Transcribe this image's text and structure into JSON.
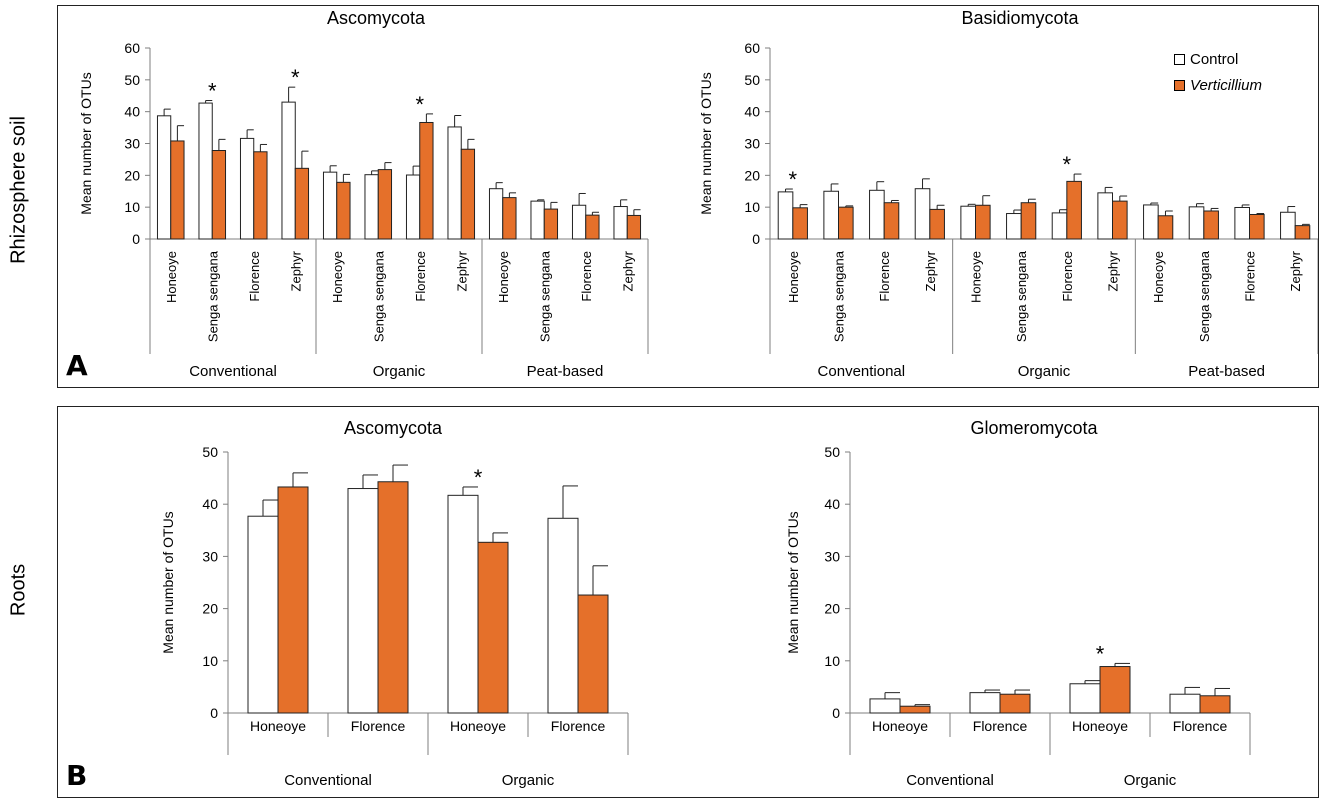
{
  "row_labels": {
    "top": "Rhizosphere soil",
    "bottom": "Roots"
  },
  "panel_letters": {
    "top": "A",
    "bottom": "B"
  },
  "legend": {
    "control": "Control",
    "treatment": "Verticillium"
  },
  "colors": {
    "control": "#ffffff",
    "treatment": "#e5702a",
    "axis": "#7f7f7f",
    "border": "#222222"
  },
  "chart_data": [
    {
      "id": "A1",
      "type": "bar",
      "title": "Ascomycota",
      "ylabel": "Mean number of OTUs",
      "ylim": [
        0,
        60
      ],
      "yticks": [
        0,
        10,
        20,
        30,
        40,
        50,
        60
      ],
      "categories": [
        "Honeoye",
        "Senga sengana",
        "Florence",
        "Zephyr",
        "Honeoye",
        "Senga sengana",
        "Florence",
        "Zephyr",
        "Honeoye",
        "Senga sengana",
        "Florence",
        "Zephyr"
      ],
      "groups": [
        {
          "name": "Conventional",
          "size": 4
        },
        {
          "name": "Organic",
          "size": 4
        },
        {
          "name": "Peat-based",
          "size": 4
        }
      ],
      "series": [
        {
          "name": "Control",
          "values": [
            38.7,
            42.7,
            31.6,
            43.0,
            21.0,
            20.2,
            20.1,
            35.2,
            15.8,
            11.9,
            10.6,
            10.2
          ],
          "errors": [
            2.1,
            0.8,
            2.7,
            4.7,
            2.0,
            1.2,
            2.8,
            3.6,
            1.9,
            0.4,
            3.7,
            2.1
          ]
        },
        {
          "name": "Verticillium",
          "values": [
            30.8,
            27.8,
            27.4,
            22.2,
            17.8,
            21.8,
            36.6,
            28.2,
            13.0,
            9.4,
            7.5,
            7.4
          ],
          "errors": [
            4.8,
            3.5,
            2.3,
            5.4,
            2.5,
            2.2,
            2.7,
            3.1,
            1.5,
            2.1,
            0.9,
            1.8
          ]
        }
      ],
      "significant": [
        1,
        3,
        6
      ]
    },
    {
      "id": "A2",
      "type": "bar",
      "title": "Basidiomycota",
      "ylabel": "Mean number of OTUs",
      "ylim": [
        0,
        60
      ],
      "yticks": [
        0,
        10,
        20,
        30,
        40,
        50,
        60
      ],
      "categories": [
        "Honeoye",
        "Senga sengana",
        "Florence",
        "Zephyr",
        "Honeoye",
        "Senga sengana",
        "Florence",
        "Zephyr",
        "Honeoye",
        "Senga sengana",
        "Florence",
        "Zephyr"
      ],
      "groups": [
        {
          "name": "Conventional",
          "size": 4
        },
        {
          "name": "Organic",
          "size": 4
        },
        {
          "name": "Peat-based",
          "size": 4
        }
      ],
      "series": [
        {
          "name": "Control",
          "values": [
            14.8,
            15.0,
            15.3,
            15.8,
            10.3,
            8.0,
            8.2,
            14.5,
            10.7,
            10.1,
            9.9,
            8.4
          ],
          "errors": [
            0.9,
            2.3,
            2.7,
            3.1,
            0.6,
            1.1,
            1.0,
            1.7,
            0.6,
            1.0,
            0.8,
            1.8
          ]
        },
        {
          "name": "Verticillium",
          "values": [
            9.8,
            10.0,
            11.4,
            9.3,
            10.6,
            11.4,
            18.1,
            11.9,
            7.3,
            8.8,
            7.7,
            4.2
          ],
          "errors": [
            1.0,
            0.4,
            0.7,
            1.3,
            3.0,
            1.1,
            2.3,
            1.6,
            1.5,
            0.8,
            0.3,
            0.4
          ]
        }
      ],
      "significant": [
        0,
        6
      ]
    },
    {
      "id": "B1",
      "type": "bar",
      "title": "Ascomycota",
      "ylabel": "Mean number of OTUs",
      "ylim": [
        0,
        50
      ],
      "yticks": [
        0,
        10,
        20,
        30,
        40,
        50
      ],
      "categories": [
        "Honeoye",
        "Florence",
        "Honeoye",
        "Florence"
      ],
      "groups": [
        {
          "name": "Conventional",
          "size": 2
        },
        {
          "name": "Organic",
          "size": 2
        }
      ],
      "series": [
        {
          "name": "Control",
          "values": [
            37.7,
            43.0,
            41.7,
            37.3
          ],
          "errors": [
            3.1,
            2.6,
            1.6,
            6.2
          ]
        },
        {
          "name": "Verticillium",
          "values": [
            43.3,
            44.3,
            32.7,
            22.6
          ],
          "errors": [
            2.7,
            3.2,
            1.8,
            5.6
          ]
        }
      ],
      "significant": [
        2
      ]
    },
    {
      "id": "B2",
      "type": "bar",
      "title": "Glomeromycota",
      "ylabel": "Mean number of OTUs",
      "ylim": [
        0,
        50
      ],
      "yticks": [
        0,
        10,
        20,
        30,
        40,
        50
      ],
      "categories": [
        "Honeoye",
        "Florence",
        "Honeoye",
        "Florence"
      ],
      "groups": [
        {
          "name": "Conventional",
          "size": 2
        },
        {
          "name": "Organic",
          "size": 2
        }
      ],
      "series": [
        {
          "name": "Control",
          "values": [
            2.7,
            3.9,
            5.6,
            3.6
          ],
          "errors": [
            1.2,
            0.5,
            0.6,
            1.3
          ]
        },
        {
          "name": "Verticillium",
          "values": [
            1.3,
            3.6,
            8.9,
            3.3
          ],
          "errors": [
            0.3,
            0.8,
            0.6,
            1.4
          ]
        }
      ],
      "significant": [
        2
      ]
    }
  ]
}
